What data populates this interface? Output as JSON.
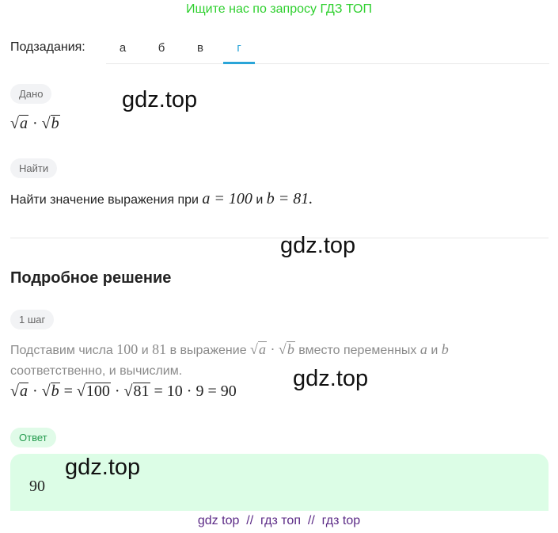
{
  "banner": "Ищите нас по запросу ГДЗ ТОП",
  "subtasks": {
    "label": "Подзадания:",
    "tabs": [
      "а",
      "б",
      "в",
      "г"
    ],
    "active": "г"
  },
  "given": {
    "label": "Дано",
    "expr": {
      "a": "a",
      "b": "b",
      "dot": "·",
      "sqrt": "√"
    }
  },
  "find": {
    "label": "Найти",
    "text": "Найти значение выражения при",
    "a_eq": "a = 100",
    "and": "и",
    "b_eq": "b = 81."
  },
  "solution": {
    "title": "Подробное решение",
    "step_label": "1 шаг",
    "step_text_1": "Подставим числа",
    "n100": "100",
    "and": "и",
    "n81": "81",
    "step_text_2": "в выражение",
    "step_text_3": "вместо переменных",
    "var_a": "a",
    "var_b": "b",
    "step_text_4": "соответственно, и вычислим.",
    "eq_part1": "= ",
    "eq_part2": " = 10 · 9 = 90"
  },
  "answer": {
    "label": "Ответ",
    "value": "90"
  },
  "watermark": "gdz.top",
  "footer": "gdz top  //  гдз топ  //  гдз top",
  "colors": {
    "accent": "#2aa5d8",
    "banner": "#2fd02f",
    "answer_bg": "#dcfde6",
    "footer": "#5b2a86"
  }
}
